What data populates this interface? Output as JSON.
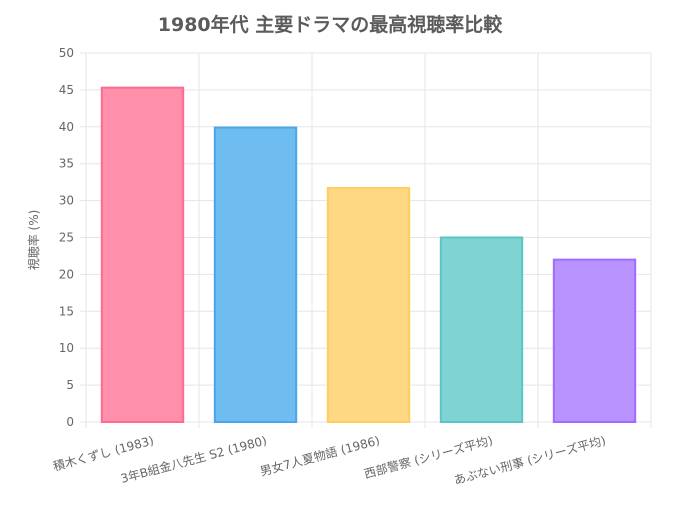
{
  "chart_data": {
    "type": "bar",
    "title": "1980年代 主要ドラマの最高視聴率比較",
    "ylabel": "視聴率 (%)",
    "xlabel": "",
    "ylim": [
      0,
      50
    ],
    "yticks": [
      0,
      5,
      10,
      15,
      20,
      25,
      30,
      35,
      40,
      45,
      50
    ],
    "grid": true,
    "legend": "none",
    "categories": [
      "積木くずし (1983)",
      "3年B組金八先生 S2 (1980)",
      "男女7人夏物語 (1986)",
      "西部警察 (シリーズ平均)",
      "あぶない刑事 (シリーズ平均)"
    ],
    "values": [
      45.3,
      39.9,
      31.7,
      25.0,
      22.0
    ],
    "colors": {
      "fill": [
        "#ff8fab",
        "#6fbdf0",
        "#ffd884",
        "#7fd3d3",
        "#b893ff"
      ],
      "stroke": [
        "#ff6b8f",
        "#4aa6e8",
        "#ffcc5e",
        "#5bc4c4",
        "#9f6cff"
      ]
    }
  }
}
